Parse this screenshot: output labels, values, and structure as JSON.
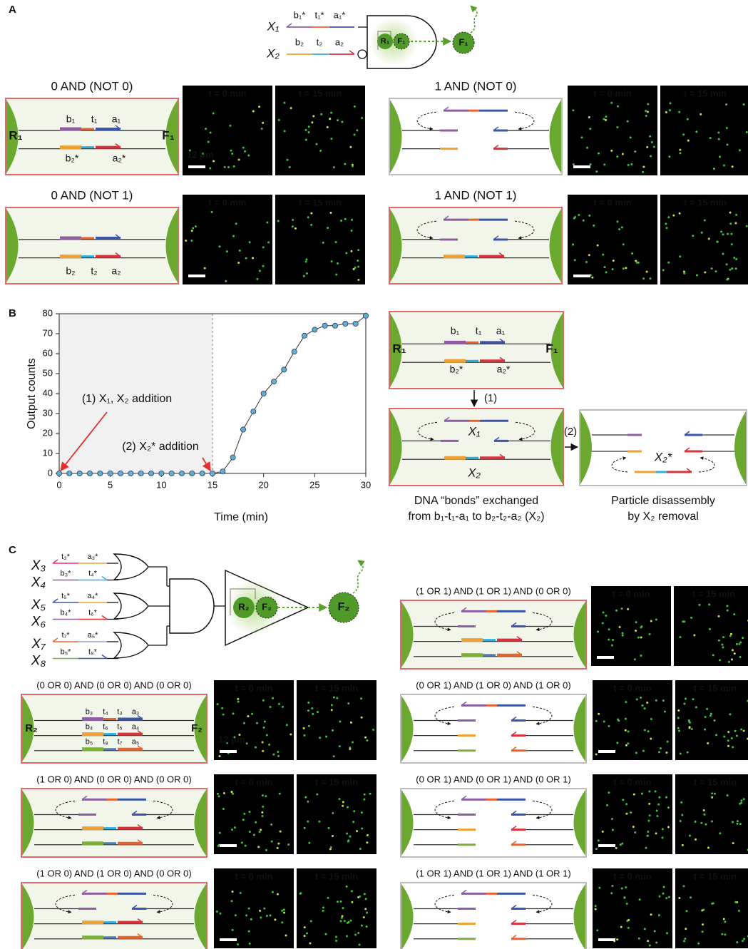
{
  "panel_labels": [
    "A",
    "B",
    "C"
  ],
  "panel_a": {
    "gate": {
      "inputs": [
        {
          "name": "X₁",
          "strand_labels": [
            "b₁*",
            "t₁*",
            "a₁*"
          ]
        },
        {
          "name": "X₂",
          "strand_labels": [
            "b₂",
            "t₂",
            "a₂"
          ]
        }
      ],
      "gate_labels": [
        "R₁",
        "F₁"
      ],
      "output": "F₁"
    },
    "time_labels": [
      "t = 0 min",
      "t = 15 min"
    ],
    "scale_bar": "12 μm",
    "conditions": [
      {
        "title": "0 AND (NOT 0)",
        "color": "#e06a6a",
        "labels": [
          "b₁",
          "t₁",
          "a₁",
          "b₂*",
          "a₂*",
          "R₁",
          "F₁"
        ]
      },
      {
        "title": "1 AND (NOT 0)",
        "color": "#bdbdbd"
      },
      {
        "title": "0 AND (NOT 1)",
        "color": "#e06a6a",
        "labels": [
          "b₂",
          "t₂",
          "a₂"
        ]
      },
      {
        "title": "1 AND (NOT 1)",
        "color": "#e06a6a"
      }
    ]
  },
  "chart_data": {
    "type": "line",
    "x": [
      0,
      1,
      2,
      3,
      4,
      5,
      6,
      7,
      8,
      9,
      10,
      11,
      12,
      13,
      14,
      15,
      16,
      17,
      18,
      19,
      20,
      21,
      22,
      23,
      24,
      25,
      26,
      27,
      28,
      29,
      30
    ],
    "values": [
      0,
      0,
      0,
      0,
      0,
      0,
      0,
      0,
      0,
      0,
      0,
      0,
      0,
      0,
      0,
      0,
      1,
      8,
      22,
      31,
      40,
      46,
      52,
      61,
      69,
      72,
      74,
      74,
      75,
      75,
      79
    ],
    "color": "#5fb0cf",
    "line_color": "#333333",
    "xlabel": "Time (min)",
    "ylabel": "Output counts",
    "xlim": [
      0,
      30
    ],
    "ylim": [
      0,
      80
    ],
    "xticks": [
      0,
      5,
      10,
      15,
      20,
      25,
      30
    ],
    "yticks": [
      0,
      10,
      20,
      30,
      40,
      50,
      60,
      70,
      80
    ],
    "shaded_xlim": [
      0,
      15
    ],
    "annotations": [
      {
        "text": "(1) X₁, X₂ addition",
        "x": 0,
        "y": 0
      },
      {
        "text": "(2) X₂* addition",
        "x": 15,
        "y": 0
      }
    ]
  },
  "panel_b": {
    "box1_labels": [
      "b₁",
      "t₁",
      "a₁",
      "b₂*",
      "a₂*",
      "R₁",
      "F₁"
    ],
    "step1": "(1)",
    "box2_labels": [
      "X₁",
      "X₂"
    ],
    "step2": "(2)",
    "box3_label": "X₂*",
    "caption_left": [
      "DNA “bonds” exchanged",
      "from b₁-t₁-a₁ to b₂-t₂-a₂ (X₂)"
    ],
    "caption_right": [
      "Particle disassembly",
      "by X₂ removal"
    ]
  },
  "panel_c": {
    "gate": {
      "inputs": [
        {
          "name": "X₃",
          "strand_labels": [
            "t₃*",
            "a₃*"
          ]
        },
        {
          "name": "X₄",
          "strand_labels": [
            "b₃*",
            "t₄*"
          ]
        },
        {
          "name": "X₅",
          "strand_labels": [
            "t₅*",
            "a₄*"
          ]
        },
        {
          "name": "X₆",
          "strand_labels": [
            "b₄*",
            "t₆*"
          ]
        },
        {
          "name": "X₇",
          "strand_labels": [
            "t₇*",
            "a₅*"
          ]
        },
        {
          "name": "X₈",
          "strand_labels": [
            "b₅*",
            "t₈*"
          ]
        }
      ],
      "gate_labels": [
        "R₂",
        "F₂"
      ],
      "output": "F₂"
    },
    "conditions": [
      {
        "title": "(1 OR 1)  AND  (1 OR 1)  AND  (0 OR 0)",
        "color": "#e06a6a"
      },
      {
        "title": "(0 OR 0)  AND  (0 OR 0)  AND  (0 OR 0)",
        "color": "#e06a6a",
        "labels": [
          "b₃",
          "t₄",
          "t₃",
          "a₃",
          "b₄",
          "t₆",
          "t₅",
          "a₄",
          "b₅",
          "t₈",
          "t₇",
          "a₅",
          "R₂",
          "F₂"
        ]
      },
      {
        "title": "(0 OR 1)  AND  (1 OR 0)  AND  (1 OR 0)",
        "color": "#bdbdbd"
      },
      {
        "title": "(1 OR 0)  AND  (0 OR 0)  AND  (0 OR 0)",
        "color": "#e06a6a"
      },
      {
        "title": "(0 OR 1)  AND  (0 OR 1)  AND  (0 OR 1)",
        "color": "#bdbdbd"
      },
      {
        "title": "(1 OR 0)  AND  (1 OR 0)  AND  (0 OR 0)",
        "color": "#e06a6a"
      },
      {
        "title": "(1 OR 1)  AND  (1 OR 1)  AND  (1 OR 1)",
        "color": "#bdbdbd"
      }
    ]
  }
}
